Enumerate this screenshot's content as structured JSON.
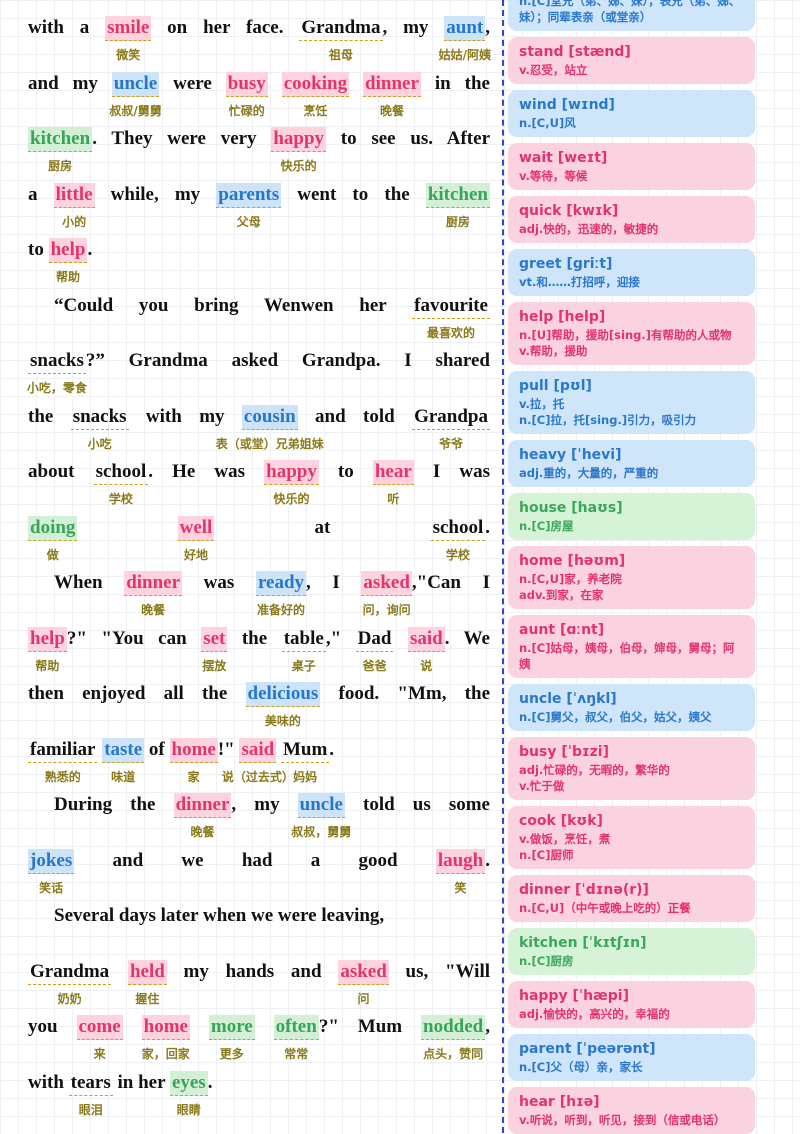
{
  "passage": {
    "lines": [
      {
        "segments": [
          {
            "text": "with a "
          },
          {
            "text": "smile",
            "gloss": "微笑",
            "highlight": "pink"
          },
          {
            "text": " on her face. "
          },
          {
            "text": "Grandma",
            "gloss": "祖母"
          },
          {
            "text": ", my "
          },
          {
            "text": "aunt",
            "gloss": "姑姑/阿姨",
            "highlight": "blue"
          },
          {
            "text": ","
          }
        ]
      },
      {
        "segments": [
          {
            "text": "and my "
          },
          {
            "text": "uncle",
            "gloss": "叔叔/舅舅",
            "highlight": "blue"
          },
          {
            "text": " were "
          },
          {
            "text": "busy",
            "gloss": "忙碌的",
            "highlight": "pink"
          },
          {
            "text": " "
          },
          {
            "text": "cooking",
            "gloss": "烹饪",
            "highlight": "pink"
          },
          {
            "text": " "
          },
          {
            "text": "dinner",
            "gloss": "晚餐",
            "highlight": "pink"
          },
          {
            "text": " in the"
          }
        ]
      },
      {
        "segments": [
          {
            "text": "kitchen",
            "gloss": "厨房",
            "highlight": "green"
          },
          {
            "text": ". They were very "
          },
          {
            "text": "happy",
            "gloss": "快乐的",
            "highlight": "pink"
          },
          {
            "text": " to see us. After"
          }
        ]
      },
      {
        "segments": [
          {
            "text": "a "
          },
          {
            "text": "little",
            "gloss": "小的",
            "highlight": "pink"
          },
          {
            "text": " while, my "
          },
          {
            "text": "parents",
            "gloss": "父母",
            "highlight": "blue"
          },
          {
            "text": " went to the "
          },
          {
            "text": "kitchen",
            "gloss": "厨房",
            "highlight": "green"
          }
        ]
      },
      {
        "segments": [
          {
            "text": "to "
          },
          {
            "text": "help",
            "gloss": "帮助",
            "highlight": "pink"
          },
          {
            "text": "."
          }
        ]
      },
      {
        "segments": [
          {
            "text": "“Could you bring Wenwen her "
          },
          {
            "text": "favourite",
            "gloss": "最喜欢的"
          }
        ]
      },
      {
        "segments": [
          {
            "text": "snacks",
            "gloss": "小吃，零食"
          },
          {
            "text": "?” Grandma asked Grandpa. I shared"
          }
        ]
      },
      {
        "segments": [
          {
            "text": "the "
          },
          {
            "text": "snacks",
            "gloss": "小吃"
          },
          {
            "text": " with my "
          },
          {
            "text": "cousin",
            "gloss": "表（或堂）兄弟姐妹",
            "highlight": "blue"
          },
          {
            "text": " and told "
          },
          {
            "text": "Grandpa",
            "gloss": "爷爷"
          }
        ]
      },
      {
        "segments": [
          {
            "text": "about "
          },
          {
            "text": "school",
            "gloss": "学校"
          },
          {
            "text": ". He was "
          },
          {
            "text": "happy",
            "gloss": "快乐的",
            "highlight": "pink"
          },
          {
            "text": " to "
          },
          {
            "text": "hear",
            "gloss": "听",
            "highlight": "pink"
          },
          {
            "text": " I was"
          }
        ]
      },
      {
        "segments": [
          {
            "text": "doing",
            "gloss": "做",
            "highlight": "green"
          },
          {
            "text": " "
          },
          {
            "text": "well",
            "gloss": "好地",
            "highlight": "pink"
          },
          {
            "text": " at "
          },
          {
            "text": "school",
            "gloss": "学校"
          },
          {
            "text": "."
          }
        ]
      },
      {
        "segments": [
          {
            "text": "When "
          },
          {
            "text": "dinner",
            "gloss": "晚餐",
            "highlight": "pink"
          },
          {
            "text": " was "
          },
          {
            "text": "ready",
            "gloss": "准备好的",
            "highlight": "blue"
          },
          {
            "text": ", I "
          },
          {
            "text": "asked",
            "gloss": "问，询问",
            "highlight": "pink"
          },
          {
            "text": ",\"Can I"
          }
        ]
      },
      {
        "segments": [
          {
            "text": "help",
            "gloss": "帮助",
            "highlight": "pink"
          },
          {
            "text": "?\" \"You can "
          },
          {
            "text": "set",
            "gloss": "摆放",
            "highlight": "pink"
          },
          {
            "text": " the "
          },
          {
            "text": "table",
            "gloss": "桌子"
          },
          {
            "text": ",\" "
          },
          {
            "text": "Dad",
            "gloss": "爸爸"
          },
          {
            "text": " "
          },
          {
            "text": "said",
            "gloss": "说",
            "highlight": "pink"
          },
          {
            "text": ". We"
          }
        ]
      },
      {
        "segments": [
          {
            "text": "then enjoyed all the "
          },
          {
            "text": "delicious",
            "gloss": "美味的",
            "highlight": "blue"
          },
          {
            "text": " food. \"Mm, the"
          }
        ]
      },
      {
        "segments": [
          {
            "text": "familiar",
            "gloss": "熟悉的"
          },
          {
            "text": " "
          },
          {
            "text": "taste",
            "gloss": "味道",
            "highlight": "blue"
          },
          {
            "text": " of "
          },
          {
            "text": "home",
            "gloss": "家",
            "highlight": "pink"
          },
          {
            "text": "!\" "
          },
          {
            "text": "said",
            "gloss": "说（过去式）",
            "highlight": "pink"
          },
          {
            "text": " "
          },
          {
            "text": "Mum",
            "gloss": "妈妈"
          },
          {
            "text": "."
          }
        ]
      },
      {
        "segments": [
          {
            "text": "During the "
          },
          {
            "text": "dinner",
            "gloss": "晚餐",
            "highlight": "pink"
          },
          {
            "text": ", my "
          },
          {
            "text": "uncle",
            "gloss": "叔叔，舅舅",
            "highlight": "blue"
          },
          {
            "text": " told us some"
          }
        ]
      },
      {
        "segments": [
          {
            "text": "jokes",
            "gloss": "笑话",
            "highlight": "blue"
          },
          {
            "text": " and we had a good "
          },
          {
            "text": "laugh",
            "gloss": "笑",
            "highlight": "pink"
          },
          {
            "text": "."
          }
        ]
      },
      {
        "segments": [
          {
            "text": "Several days later when we were leaving,"
          }
        ]
      },
      {
        "segments": [
          {
            "text": "Grandma",
            "gloss": "奶奶"
          },
          {
            "text": " "
          },
          {
            "text": "held",
            "gloss": "握住",
            "highlight": "pink"
          },
          {
            "text": " my hands and "
          },
          {
            "text": "asked",
            "gloss": "问",
            "highlight": "pink"
          },
          {
            "text": " us, \"Will"
          }
        ]
      },
      {
        "segments": [
          {
            "text": "you "
          },
          {
            "text": "come",
            "gloss": "来",
            "highlight": "pink"
          },
          {
            "text": " "
          },
          {
            "text": "home",
            "gloss": "家，回家",
            "highlight": "pink"
          },
          {
            "text": " "
          },
          {
            "text": "more",
            "gloss": "更多",
            "highlight": "green"
          },
          {
            "text": " "
          },
          {
            "text": "often",
            "gloss": "常常",
            "highlight": "green"
          },
          {
            "text": "?\" Mum "
          },
          {
            "text": "nodded",
            "gloss": "点头，赞同",
            "highlight": "green"
          },
          {
            "text": ","
          }
        ]
      },
      {
        "segments": [
          {
            "text": "with "
          },
          {
            "text": "tears",
            "gloss": "眼泪"
          },
          {
            "text": " in her "
          },
          {
            "text": "eyes",
            "gloss": "眼睛",
            "highlight": "green"
          },
          {
            "text": "."
          }
        ]
      }
    ]
  },
  "vocab": [
    {
      "color": "blue",
      "defs": [
        "n.[C]堂兄（弟、姊、妹），表兄（弟、姊、妹）；同辈表亲（或堂亲）"
      ]
    },
    {
      "color": "pink",
      "head": "stand [stænd]",
      "defs": [
        "v.忍受，站立"
      ]
    },
    {
      "color": "blue",
      "head": "wind [wɪnd]",
      "defs": [
        "n.[C,U]风"
      ]
    },
    {
      "color": "pink",
      "head": "wait [weɪt]",
      "defs": [
        "v.等待，等候"
      ]
    },
    {
      "color": "pink",
      "head": "quick [kwɪk]",
      "defs": [
        "adj.快的，迅速的，敏捷的"
      ]
    },
    {
      "color": "blue",
      "head": "greet [griːt]",
      "defs": [
        "vt.和……打招呼，迎接"
      ]
    },
    {
      "color": "pink",
      "head": "help [help]",
      "defs": [
        "n.[U]帮助，援助[sing.]有帮助的人或物",
        "v.帮助，援助"
      ]
    },
    {
      "color": "blue",
      "head": "pull [pʊl]",
      "defs": [
        "v.拉，托",
        "n.[C]拉，托[sing.]引力，吸引力"
      ]
    },
    {
      "color": "blue",
      "head": "heavy [ˈhevi]",
      "defs": [
        "adj.重的，大量的，严重的"
      ]
    },
    {
      "color": "green",
      "head": "house [haʊs]",
      "defs": [
        "n.[C]房屋"
      ]
    },
    {
      "color": "pink",
      "head": "home [həʊm]",
      "defs": [
        "n.[C,U]家，养老院",
        "adv.到家，在家"
      ]
    },
    {
      "color": "pink",
      "head": "aunt [ɑːnt]",
      "defs": [
        "n.[C]姑母，姨母，伯母，婶母，舅母；阿姨"
      ]
    },
    {
      "color": "blue",
      "head": "uncle [ˈʌŋkl]",
      "defs": [
        "n.[C]舅父，叔父，伯父，姑父，姨父"
      ]
    },
    {
      "color": "pink",
      "head": "busy [ˈbɪzi]",
      "defs": [
        "adj.忙碌的，无暇的，繁华的",
        "v.忙于做"
      ]
    },
    {
      "color": "pink",
      "head": "cook [kʊk]",
      "defs": [
        "v.做饭，烹饪，煮",
        "n.[C]厨师"
      ]
    },
    {
      "color": "pink",
      "head": "dinner [ˈdɪnə(r)]",
      "defs": [
        "n.[C,U]（中午或晚上吃的）正餐"
      ]
    },
    {
      "color": "green",
      "head": "kitchen [ˈkɪtʃɪn]",
      "defs": [
        "n.[C]厨房"
      ]
    },
    {
      "color": "pink",
      "head": "happy [ˈhæpi]",
      "defs": [
        "adj.愉快的，高兴的，幸福的"
      ]
    },
    {
      "color": "blue",
      "head": "parent [ˈpeərənt]",
      "defs": [
        "n.[C]父（母）亲，家长"
      ]
    },
    {
      "color": "pink",
      "head": "hear [hɪə]",
      "defs": [
        "v.听说，听到，听见，接到（信或电话）"
      ]
    }
  ]
}
